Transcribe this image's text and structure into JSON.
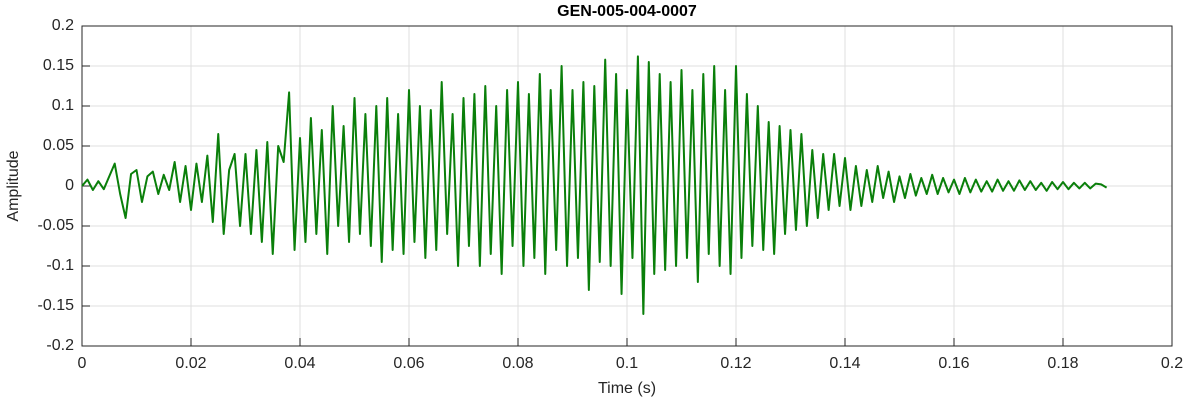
{
  "chart_data": {
    "type": "line",
    "title": "GEN-005-004-0007",
    "xlabel": "Time (s)",
    "ylabel": "Amplitude",
    "grid": true,
    "xlim": [
      0,
      0.2
    ],
    "xticks": [
      0,
      0.02,
      0.04,
      0.06,
      0.08,
      0.1,
      0.12,
      0.14,
      0.16,
      0.18,
      0.2
    ],
    "ylim": [
      -0.2,
      0.2
    ],
    "yticks": [
      -0.2,
      -0.15,
      -0.1,
      -0.05,
      0,
      0.05,
      0.1,
      0.15,
      0.2
    ],
    "x": [
      0,
      0.001,
      0.002,
      0.003,
      0.004,
      0.005,
      0.006,
      0.007,
      0.008,
      0.009,
      0.01,
      0.011,
      0.012,
      0.013,
      0.014,
      0.015,
      0.016,
      0.017,
      0.018,
      0.019,
      0.02,
      0.021,
      0.022,
      0.023,
      0.024,
      0.025,
      0.026,
      0.027,
      0.028,
      0.029,
      0.03,
      0.031,
      0.032,
      0.033,
      0.034,
      0.035,
      0.036,
      0.037,
      0.038,
      0.039,
      0.04,
      0.041,
      0.042,
      0.043,
      0.044,
      0.045,
      0.046,
      0.047,
      0.048,
      0.049,
      0.05,
      0.051,
      0.052,
      0.053,
      0.054,
      0.055,
      0.056,
      0.057,
      0.058,
      0.059,
      0.06,
      0.061,
      0.062,
      0.063,
      0.064,
      0.065,
      0.066,
      0.067,
      0.068,
      0.069,
      0.07,
      0.071,
      0.072,
      0.073,
      0.074,
      0.075,
      0.076,
      0.077,
      0.078,
      0.079,
      0.08,
      0.081,
      0.082,
      0.083,
      0.084,
      0.085,
      0.086,
      0.087,
      0.088,
      0.089,
      0.09,
      0.091,
      0.092,
      0.093,
      0.094,
      0.095,
      0.096,
      0.097,
      0.098,
      0.099,
      0.1,
      0.101,
      0.102,
      0.103,
      0.104,
      0.105,
      0.106,
      0.107,
      0.108,
      0.109,
      0.11,
      0.111,
      0.112,
      0.113,
      0.114,
      0.115,
      0.116,
      0.117,
      0.118,
      0.119,
      0.12,
      0.121,
      0.122,
      0.123,
      0.124,
      0.125,
      0.126,
      0.127,
      0.128,
      0.129,
      0.13,
      0.131,
      0.132,
      0.133,
      0.134,
      0.135,
      0.136,
      0.137,
      0.138,
      0.139,
      0.14,
      0.141,
      0.142,
      0.143,
      0.144,
      0.145,
      0.146,
      0.147,
      0.148,
      0.149,
      0.15,
      0.151,
      0.152,
      0.153,
      0.154,
      0.155,
      0.156,
      0.157,
      0.158,
      0.159,
      0.16,
      0.161,
      0.162,
      0.163,
      0.164,
      0.165,
      0.166,
      0.167,
      0.168,
      0.169,
      0.17,
      0.171,
      0.172,
      0.173,
      0.174,
      0.175,
      0.176,
      0.177,
      0.178,
      0.179,
      0.18,
      0.181,
      0.182,
      0.183,
      0.184,
      0.185,
      0.186,
      0.187,
      0.188
    ],
    "series": [
      {
        "color": "#0a7f0a",
        "values": [
          0,
          0.008,
          -0.005,
          0.006,
          -0.004,
          0.012,
          0.028,
          -0.01,
          -0.04,
          0.015,
          0.02,
          -0.02,
          0.012,
          0.018,
          -0.01,
          0.014,
          -0.005,
          0.03,
          -0.02,
          0.025,
          -0.03,
          0.028,
          -0.02,
          0.038,
          -0.045,
          0.065,
          -0.06,
          0.02,
          0.04,
          -0.05,
          0.04,
          -0.06,
          0.045,
          -0.07,
          0.055,
          -0.085,
          0.05,
          0.03,
          0.117,
          -0.08,
          0.06,
          -0.07,
          0.085,
          -0.06,
          0.07,
          -0.085,
          0.1,
          -0.05,
          0.075,
          -0.07,
          0.11,
          -0.06,
          0.09,
          -0.075,
          0.1,
          -0.095,
          0.11,
          -0.08,
          0.09,
          -0.085,
          0.12,
          -0.07,
          0.1,
          -0.09,
          0.095,
          -0.08,
          0.13,
          -0.06,
          0.09,
          -0.1,
          0.11,
          -0.075,
          0.115,
          -0.1,
          0.125,
          -0.085,
          0.1,
          -0.11,
          0.12,
          -0.075,
          0.13,
          -0.1,
          0.115,
          -0.09,
          0.14,
          -0.11,
          0.12,
          -0.08,
          0.15,
          -0.1,
          0.12,
          -0.09,
          0.13,
          -0.13,
          0.125,
          -0.095,
          0.158,
          -0.1,
          0.14,
          -0.135,
          0.12,
          -0.09,
          0.162,
          -0.16,
          0.155,
          -0.11,
          0.14,
          -0.105,
          0.13,
          -0.1,
          0.145,
          -0.09,
          0.12,
          -0.12,
          0.14,
          -0.085,
          0.15,
          -0.1,
          0.12,
          -0.11,
          0.15,
          -0.09,
          0.115,
          -0.075,
          0.1,
          -0.08,
          0.08,
          -0.085,
          0.075,
          -0.06,
          0.07,
          -0.055,
          0.065,
          -0.05,
          0.045,
          -0.04,
          0.04,
          -0.03,
          0.04,
          -0.025,
          0.035,
          -0.03,
          0.025,
          -0.025,
          0.02,
          -0.02,
          0.025,
          -0.015,
          0.018,
          -0.02,
          0.012,
          -0.015,
          0.015,
          -0.012,
          0.01,
          -0.01,
          0.014,
          -0.01,
          0.01,
          -0.008,
          0.008,
          -0.01,
          0.01,
          -0.008,
          0.008,
          -0.007,
          0.006,
          -0.007,
          0.008,
          -0.006,
          0.006,
          -0.006,
          0.007,
          -0.005,
          0.006,
          -0.005,
          0.004,
          -0.006,
          0.005,
          -0.004,
          0.005,
          -0.004,
          0.004,
          -0.003,
          0.004,
          -0.003,
          0.003,
          0.002,
          -0.002
        ]
      }
    ]
  }
}
